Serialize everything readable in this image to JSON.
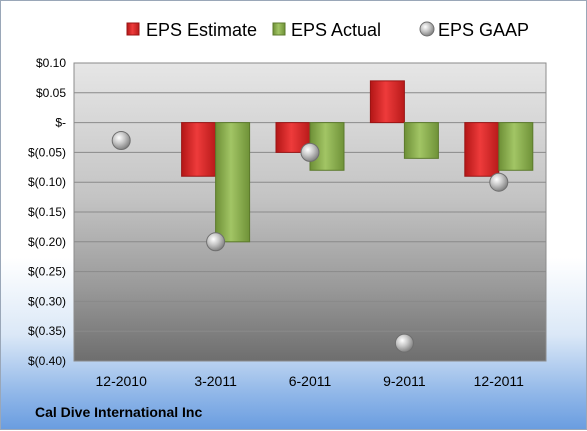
{
  "chart_data": {
    "type": "bar",
    "categories": [
      "12-2010",
      "3-2011",
      "6-2011",
      "9-2011",
      "12-2011"
    ],
    "series": [
      {
        "name": "EPS Estimate",
        "kind": "bar",
        "color": "#d42a2a",
        "values": [
          null,
          -0.09,
          -0.05,
          0.07,
          -0.09
        ]
      },
      {
        "name": "EPS Actual",
        "kind": "bar",
        "color": "#84a94a",
        "values": [
          null,
          -0.2,
          -0.08,
          -0.06,
          -0.08
        ]
      },
      {
        "name": "EPS GAAP",
        "kind": "scatter",
        "color": "#a9a9a9",
        "values": [
          -0.03,
          -0.2,
          -0.05,
          -0.37,
          -0.1
        ]
      }
    ],
    "y_ticks": [
      {
        "value": 0.1,
        "label": "$0.10"
      },
      {
        "value": 0.05,
        "label": "$0.05"
      },
      {
        "value": 0.0,
        "label": "$-"
      },
      {
        "value": -0.05,
        "label": "$(0.05)"
      },
      {
        "value": -0.1,
        "label": "$(0.10)"
      },
      {
        "value": -0.15,
        "label": "$(0.15)"
      },
      {
        "value": -0.2,
        "label": "$(0.20)"
      },
      {
        "value": -0.25,
        "label": "$(0.25)"
      },
      {
        "value": -0.3,
        "label": "$(0.30)"
      },
      {
        "value": -0.35,
        "label": "$(0.35)"
      },
      {
        "value": -0.4,
        "label": "$(0.40)"
      }
    ],
    "ylim": [
      -0.4,
      0.1
    ],
    "grid": true,
    "legend_position": "top",
    "title": "",
    "xlabel": "",
    "ylabel": ""
  },
  "footer": {
    "company": "Cal Dive International Inc"
  }
}
